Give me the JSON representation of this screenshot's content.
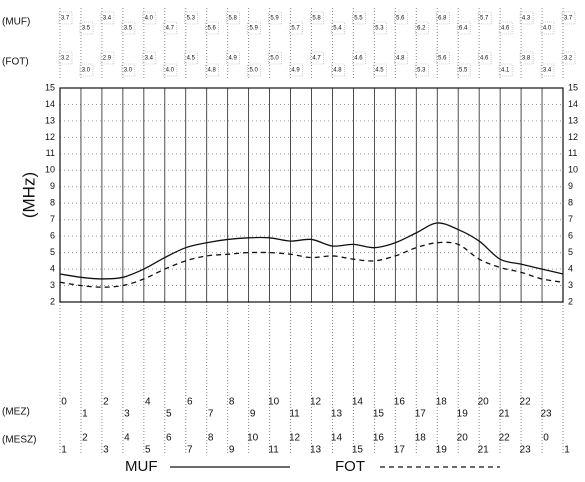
{
  "chart_data": {
    "type": "line",
    "y_label": "(MHz)",
    "row_labels": {
      "muf": "(MUF)",
      "fot": "(FOT)",
      "mez": "(MEZ)",
      "mesz": "(MESZ)"
    },
    "x": [
      0,
      1,
      2,
      3,
      4,
      5,
      6,
      7,
      8,
      9,
      10,
      11,
      12,
      13,
      14,
      15,
      16,
      17,
      18,
      19,
      20,
      21,
      22,
      23,
      24
    ],
    "xlim": [
      0,
      24
    ],
    "mez_labels": [
      "0",
      "1",
      "2",
      "3",
      "4",
      "5",
      "6",
      "7",
      "8",
      "9",
      "10",
      "11",
      "12",
      "13",
      "14",
      "15",
      "16",
      "17",
      "18",
      "19",
      "20",
      "21",
      "22",
      "23"
    ],
    "mesz_labels": [
      "1",
      "2",
      "3",
      "4",
      "5",
      "6",
      "7",
      "8",
      "9",
      "10",
      "11",
      "12",
      "13",
      "14",
      "15",
      "16",
      "17",
      "18",
      "19",
      "20",
      "21",
      "22",
      "23",
      "0",
      "1"
    ],
    "ylim": [
      2,
      15
    ],
    "yticks": [
      2,
      3,
      4,
      5,
      6,
      7,
      8,
      9,
      10,
      11,
      12,
      13,
      14,
      15
    ],
    "series": [
      {
        "name": "MUF",
        "color": "#111",
        "dash": "none",
        "values": [
          3.7,
          3.5,
          3.4,
          3.5,
          4.0,
          4.7,
          5.3,
          5.6,
          5.8,
          5.9,
          5.9,
          5.7,
          5.8,
          5.4,
          5.5,
          5.3,
          5.6,
          6.2,
          6.8,
          6.4,
          5.7,
          4.6,
          4.3,
          4.0,
          3.7
        ],
        "value_labels": [
          "3.7",
          "3.5",
          "3.4",
          "3.5",
          "4.0",
          "4.7",
          "5.3",
          "5.6",
          "5.8",
          "5.9",
          "5.9",
          "5.7",
          "5.8",
          "5.4",
          "5.5",
          "5.3",
          "5.6",
          "6.2",
          "6.8",
          "6.4",
          "5.7",
          "4.6",
          "4.3",
          "4.0",
          "3.7"
        ]
      },
      {
        "name": "FOT",
        "color": "#111",
        "dash": "5 4",
        "values": [
          3.2,
          3.0,
          2.9,
          3.0,
          3.4,
          4.0,
          4.5,
          4.8,
          4.9,
          5.0,
          5.0,
          4.9,
          4.7,
          4.8,
          4.6,
          4.5,
          4.8,
          5.3,
          5.6,
          5.5,
          4.6,
          4.1,
          3.8,
          3.4,
          3.2
        ],
        "value_labels": [
          "3.2",
          "3.0",
          "2.9",
          "3.0",
          "3.4",
          "4.0",
          "4.5",
          "4.8",
          "4.9",
          "5.0",
          "5.0",
          "4.9",
          "4.7",
          "4.8",
          "4.6",
          "4.5",
          "4.8",
          "5.3",
          "5.6",
          "5.5",
          "4.6",
          "4.1",
          "3.8",
          "3.4",
          "3.2"
        ]
      }
    ]
  }
}
